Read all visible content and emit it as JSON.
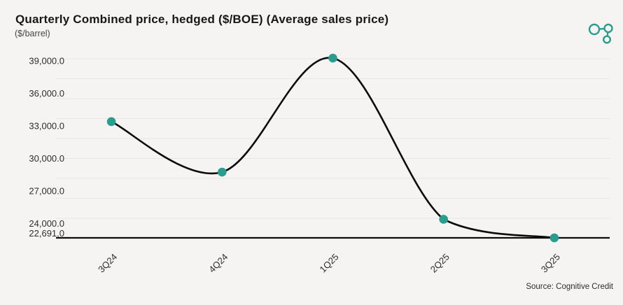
{
  "header": {
    "title": "Quarterly Combined price, hedged ($/BOE) (Average sales price)",
    "subtitle": "($/barrel)",
    "logo": "cognitive-credit-logo"
  },
  "footer": {
    "source": "Source: Cognitive Credit"
  },
  "colors": {
    "accent": "#2a9d8f",
    "line": "#0c0c0c",
    "background": "#f5f4f2",
    "grid": "#e7e6e3"
  },
  "chart_data": {
    "type": "line",
    "title": "Quarterly Combined price, hedged ($/BOE) (Average sales price)",
    "ylabel": "($/barrel)",
    "categories": [
      "3Q24",
      "4Q24",
      "1Q25",
      "2Q25",
      "3Q25"
    ],
    "values": [
      33400,
      28750,
      39250,
      24400,
      22691
    ],
    "y_ticks": [
      {
        "label": "39,000.0",
        "value": 39000
      },
      {
        "label": "36,000.0",
        "value": 36000
      },
      {
        "label": "33,000.0",
        "value": 33000
      },
      {
        "label": "30,000.0",
        "value": 30000
      },
      {
        "label": "27,000.0",
        "value": 27000
      },
      {
        "label": "24,000.0",
        "value": 24000
      },
      {
        "label": "22,691,0",
        "value": 22691
      }
    ],
    "ylim": [
      22691,
      39450
    ],
    "baseline_value": 22691,
    "grid": true,
    "gridline_count": 9,
    "legend": false,
    "marker": "circle",
    "curve": "smooth",
    "x_label_rotation": -45
  }
}
